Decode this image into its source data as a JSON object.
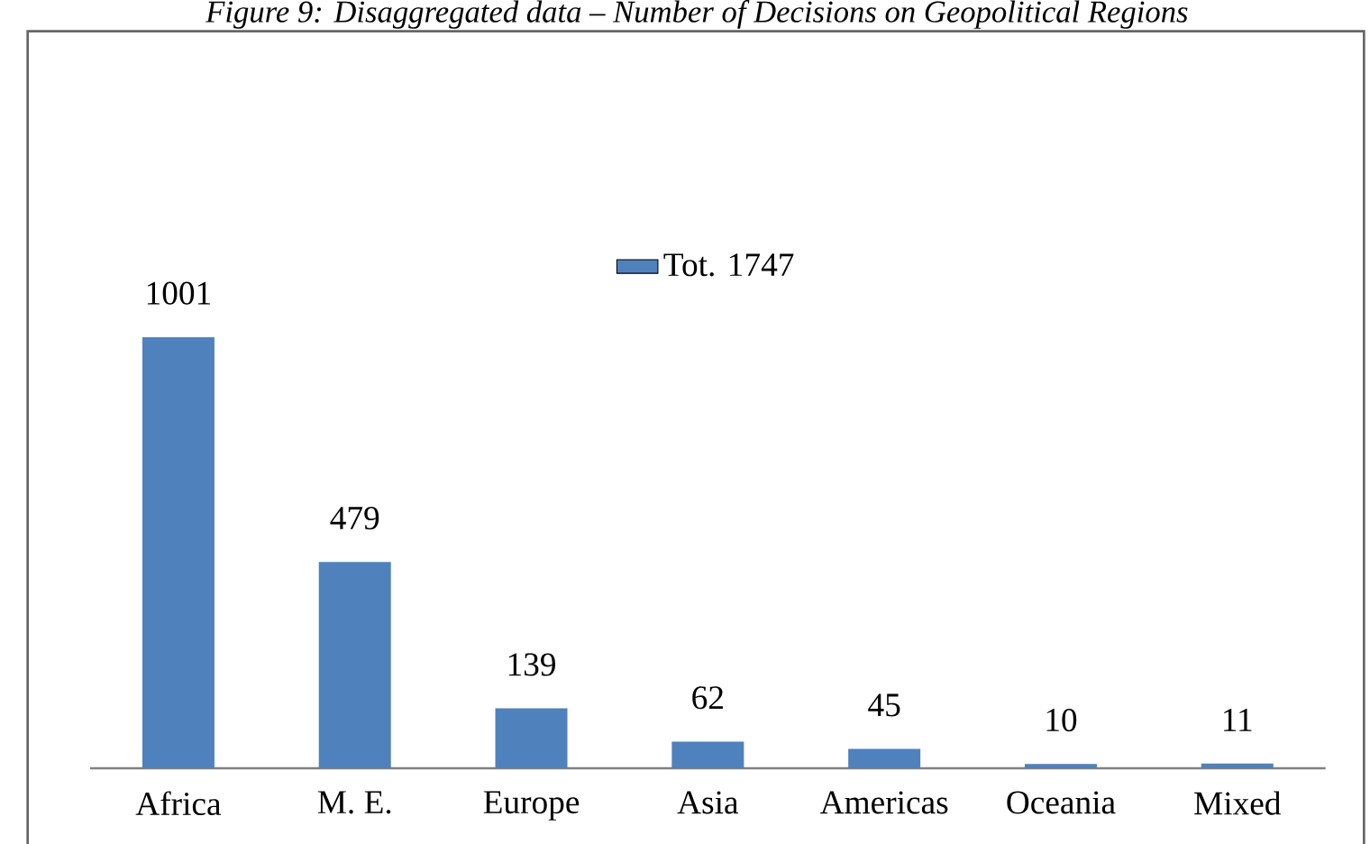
{
  "chart_data": {
    "type": "bar",
    "title": "Figure 9: Disaggregated data – Number of Decisions on Geopolitical Regions",
    "categories": [
      "Africa",
      "M. E.",
      "Europe",
      "Asia",
      "Americas",
      "Oceania",
      "Mixed"
    ],
    "series": [
      {
        "name": "Tot. 1747",
        "color": "#4f81bd",
        "values": [
          1001,
          479,
          139,
          62,
          45,
          10,
          11
        ]
      }
    ],
    "data_labels": true,
    "legend": "top"
  }
}
